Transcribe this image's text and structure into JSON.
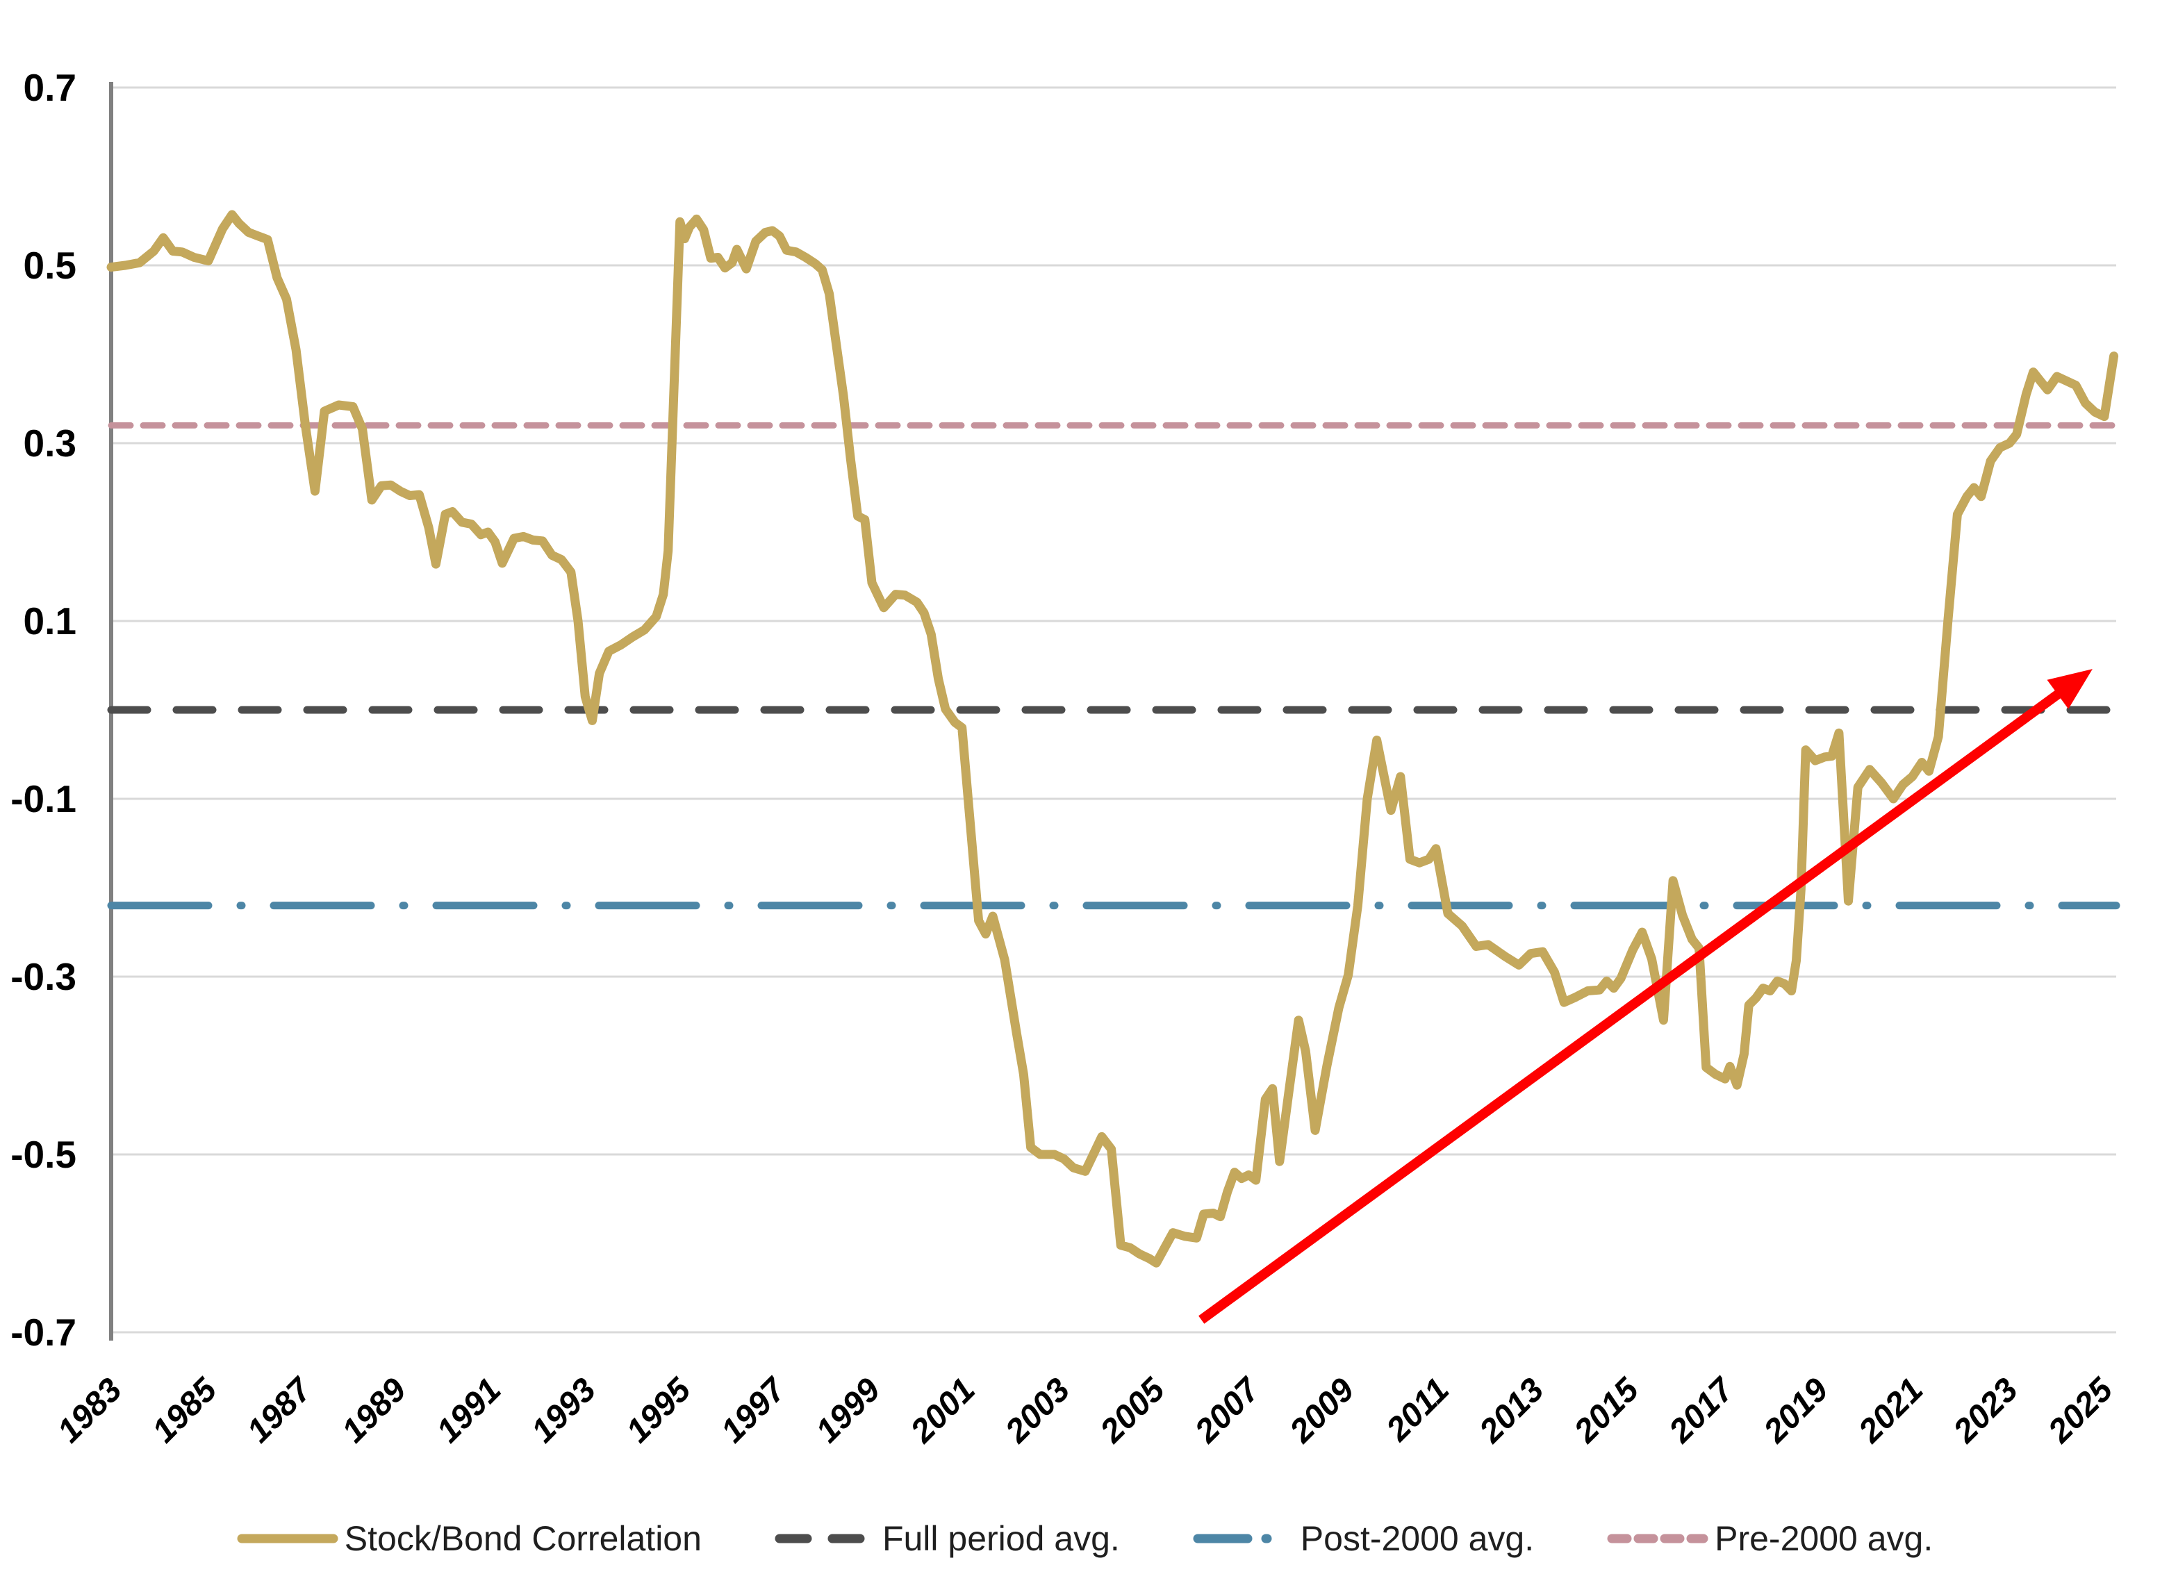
{
  "figure": {
    "background_color": "#FFFFFF",
    "grid_color": "#D9D9D9",
    "axis_color": "#808080",
    "text_color": "#000000",
    "legend_text_color": "#1F1F1F"
  },
  "chart_data": {
    "type": "line",
    "title": "",
    "xlabel": "",
    "ylabel": "",
    "xlim": [
      1983,
      2025.3
    ],
    "ylim": [
      -0.7,
      0.7
    ],
    "grid": "horizontal",
    "legend_position": "bottom",
    "x_ticks": [
      1983,
      1985,
      1987,
      1989,
      1991,
      1993,
      1995,
      1997,
      1999,
      2001,
      2003,
      2005,
      2007,
      2009,
      2011,
      2013,
      2015,
      2017,
      2019,
      2021,
      2023,
      2025
    ],
    "y_ticks": [
      0.7,
      0.5,
      0.3,
      0.1,
      -0.1,
      -0.3,
      -0.5,
      -0.7
    ],
    "y_tick_labels": [
      "0.7",
      "0.5",
      "0.3",
      "0.1",
      "-0.1",
      "-0.3",
      "-0.5",
      "-0.7"
    ],
    "series": [
      {
        "name": "Stock/Bond Correlation",
        "color": "#C4A85C",
        "style": "solid",
        "points": [
          [
            1983.0,
            0.498
          ],
          [
            1983.3,
            0.5
          ],
          [
            1983.6,
            0.503
          ],
          [
            1983.9,
            0.516
          ],
          [
            1984.1,
            0.531
          ],
          [
            1984.3,
            0.516
          ],
          [
            1984.5,
            0.515
          ],
          [
            1984.75,
            0.509
          ],
          [
            1985.05,
            0.505
          ],
          [
            1985.35,
            0.541
          ],
          [
            1985.55,
            0.557
          ],
          [
            1985.7,
            0.547
          ],
          [
            1985.9,
            0.537
          ],
          [
            1986.1,
            0.533
          ],
          [
            1986.3,
            0.529
          ],
          [
            1986.5,
            0.486
          ],
          [
            1986.7,
            0.462
          ],
          [
            1986.9,
            0.405
          ],
          [
            1987.1,
            0.319
          ],
          [
            1987.3,
            0.246
          ],
          [
            1987.5,
            0.336
          ],
          [
            1987.8,
            0.343
          ],
          [
            1988.1,
            0.341
          ],
          [
            1988.3,
            0.316
          ],
          [
            1988.5,
            0.236
          ],
          [
            1988.7,
            0.252
          ],
          [
            1988.9,
            0.253
          ],
          [
            1989.1,
            0.246
          ],
          [
            1989.3,
            0.241
          ],
          [
            1989.5,
            0.242
          ],
          [
            1989.7,
            0.205
          ],
          [
            1989.85,
            0.164
          ],
          [
            1990.05,
            0.22
          ],
          [
            1990.2,
            0.223
          ],
          [
            1990.4,
            0.211
          ],
          [
            1990.6,
            0.209
          ],
          [
            1990.8,
            0.197
          ],
          [
            1990.95,
            0.2
          ],
          [
            1991.1,
            0.189
          ],
          [
            1991.25,
            0.165
          ],
          [
            1991.5,
            0.193
          ],
          [
            1991.7,
            0.195
          ],
          [
            1991.9,
            0.191
          ],
          [
            1992.1,
            0.19
          ],
          [
            1992.3,
            0.174
          ],
          [
            1992.5,
            0.169
          ],
          [
            1992.7,
            0.155
          ],
          [
            1992.85,
            0.1
          ],
          [
            1993.0,
            0.015
          ],
          [
            1993.15,
            -0.012
          ],
          [
            1993.3,
            0.041
          ],
          [
            1993.5,
            0.066
          ],
          [
            1993.75,
            0.073
          ],
          [
            1994.0,
            0.082
          ],
          [
            1994.25,
            0.09
          ],
          [
            1994.5,
            0.105
          ],
          [
            1994.65,
            0.13
          ],
          [
            1994.75,
            0.179
          ],
          [
            1995.0,
            0.549
          ],
          [
            1995.1,
            0.53
          ],
          [
            1995.2,
            0.543
          ],
          [
            1995.35,
            0.552
          ],
          [
            1995.5,
            0.54
          ],
          [
            1995.65,
            0.508
          ],
          [
            1995.8,
            0.509
          ],
          [
            1995.95,
            0.497
          ],
          [
            1996.1,
            0.503
          ],
          [
            1996.2,
            0.518
          ],
          [
            1996.4,
            0.496
          ],
          [
            1996.6,
            0.527
          ],
          [
            1996.8,
            0.537
          ],
          [
            1996.95,
            0.539
          ],
          [
            1997.1,
            0.533
          ],
          [
            1997.25,
            0.517
          ],
          [
            1997.45,
            0.515
          ],
          [
            1997.65,
            0.509
          ],
          [
            1997.85,
            0.502
          ],
          [
            1998.0,
            0.495
          ],
          [
            1998.15,
            0.468
          ],
          [
            1998.3,
            0.41
          ],
          [
            1998.45,
            0.353
          ],
          [
            1998.6,
            0.282
          ],
          [
            1998.75,
            0.218
          ],
          [
            1998.9,
            0.214
          ],
          [
            1999.05,
            0.143
          ],
          [
            1999.3,
            0.115
          ],
          [
            1999.55,
            0.13
          ],
          [
            1999.75,
            0.129
          ],
          [
            2000.0,
            0.121
          ],
          [
            2000.15,
            0.109
          ],
          [
            2000.3,
            0.085
          ],
          [
            2000.45,
            0.035
          ],
          [
            2000.6,
            0.001
          ],
          [
            2000.8,
            -0.014
          ],
          [
            2000.95,
            -0.02
          ],
          [
            2001.1,
            -0.113
          ],
          [
            2001.3,
            -0.237
          ],
          [
            2001.45,
            -0.252
          ],
          [
            2001.6,
            -0.232
          ],
          [
            2001.85,
            -0.281
          ],
          [
            2002.1,
            -0.363
          ],
          [
            2002.25,
            -0.41
          ],
          [
            2002.4,
            -0.492
          ],
          [
            2002.6,
            -0.5
          ],
          [
            2002.9,
            -0.5
          ],
          [
            2003.1,
            -0.505
          ],
          [
            2003.3,
            -0.515
          ],
          [
            2003.55,
            -0.519
          ],
          [
            2003.9,
            -0.48
          ],
          [
            2004.1,
            -0.494
          ],
          [
            2004.3,
            -0.602
          ],
          [
            2004.5,
            -0.605
          ],
          [
            2004.7,
            -0.612
          ],
          [
            2004.9,
            -0.617
          ],
          [
            2005.05,
            -0.622
          ],
          [
            2005.4,
            -0.588
          ],
          [
            2005.65,
            -0.592
          ],
          [
            2005.9,
            -0.594
          ],
          [
            2006.05,
            -0.567
          ],
          [
            2006.25,
            -0.566
          ],
          [
            2006.4,
            -0.57
          ],
          [
            2006.55,
            -0.542
          ],
          [
            2006.7,
            -0.52
          ],
          [
            2006.85,
            -0.527
          ],
          [
            2007.0,
            -0.523
          ],
          [
            2007.15,
            -0.529
          ],
          [
            2007.35,
            -0.438
          ],
          [
            2007.5,
            -0.426
          ],
          [
            2007.65,
            -0.508
          ],
          [
            2007.85,
            -0.428
          ],
          [
            2008.05,
            -0.349
          ],
          [
            2008.2,
            -0.384
          ],
          [
            2008.4,
            -0.473
          ],
          [
            2008.65,
            -0.4
          ],
          [
            2008.9,
            -0.335
          ],
          [
            2009.1,
            -0.298
          ],
          [
            2009.3,
            -0.22
          ],
          [
            2009.5,
            -0.1
          ],
          [
            2009.7,
            -0.034
          ],
          [
            2010.0,
            -0.113
          ],
          [
            2010.2,
            -0.075
          ],
          [
            2010.4,
            -0.168
          ],
          [
            2010.6,
            -0.172
          ],
          [
            2010.8,
            -0.168
          ],
          [
            2010.95,
            -0.156
          ],
          [
            2011.2,
            -0.229
          ],
          [
            2011.5,
            -0.243
          ],
          [
            2011.8,
            -0.266
          ],
          [
            2012.05,
            -0.264
          ],
          [
            2012.4,
            -0.277
          ],
          [
            2012.7,
            -0.287
          ],
          [
            2012.95,
            -0.274
          ],
          [
            2013.2,
            -0.272
          ],
          [
            2013.45,
            -0.295
          ],
          [
            2013.65,
            -0.329
          ],
          [
            2013.9,
            -0.323
          ],
          [
            2014.15,
            -0.316
          ],
          [
            2014.4,
            -0.315
          ],
          [
            2014.55,
            -0.305
          ],
          [
            2014.7,
            -0.313
          ],
          [
            2014.85,
            -0.302
          ],
          [
            2015.1,
            -0.27
          ],
          [
            2015.3,
            -0.25
          ],
          [
            2015.5,
            -0.28
          ],
          [
            2015.75,
            -0.349
          ],
          [
            2015.95,
            -0.192
          ],
          [
            2016.15,
            -0.231
          ],
          [
            2016.35,
            -0.258
          ],
          [
            2016.5,
            -0.268
          ],
          [
            2016.65,
            -0.402
          ],
          [
            2016.85,
            -0.41
          ],
          [
            2017.05,
            -0.415
          ],
          [
            2017.15,
            -0.401
          ],
          [
            2017.3,
            -0.422
          ],
          [
            2017.45,
            -0.387
          ],
          [
            2017.55,
            -0.332
          ],
          [
            2017.7,
            -0.324
          ],
          [
            2017.85,
            -0.313
          ],
          [
            2018.0,
            -0.316
          ],
          [
            2018.15,
            -0.305
          ],
          [
            2018.3,
            -0.308
          ],
          [
            2018.45,
            -0.316
          ],
          [
            2018.55,
            -0.282
          ],
          [
            2018.65,
            -0.202
          ],
          [
            2018.75,
            -0.045
          ],
          [
            2018.95,
            -0.057
          ],
          [
            2019.15,
            -0.053
          ],
          [
            2019.3,
            -0.052
          ],
          [
            2019.45,
            -0.026
          ],
          [
            2019.65,
            -0.215
          ],
          [
            2019.85,
            -0.087
          ],
          [
            2020.1,
            -0.067
          ],
          [
            2020.35,
            -0.082
          ],
          [
            2020.6,
            -0.1
          ],
          [
            2020.8,
            -0.084
          ],
          [
            2021.0,
            -0.075
          ],
          [
            2021.2,
            -0.059
          ],
          [
            2021.35,
            -0.069
          ],
          [
            2021.55,
            -0.03
          ],
          [
            2021.75,
            0.1
          ],
          [
            2021.95,
            0.22
          ],
          [
            2022.15,
            0.24
          ],
          [
            2022.3,
            0.25
          ],
          [
            2022.45,
            0.24
          ],
          [
            2022.65,
            0.28
          ],
          [
            2022.85,
            0.295
          ],
          [
            2023.05,
            0.3
          ],
          [
            2023.2,
            0.31
          ],
          [
            2023.4,
            0.355
          ],
          [
            2023.55,
            0.38
          ],
          [
            2023.7,
            0.37
          ],
          [
            2023.85,
            0.36
          ],
          [
            2024.05,
            0.375
          ],
          [
            2024.25,
            0.37
          ],
          [
            2024.45,
            0.365
          ],
          [
            2024.65,
            0.345
          ],
          [
            2024.85,
            0.335
          ],
          [
            2025.05,
            0.33
          ],
          [
            2025.25,
            0.398
          ]
        ]
      },
      {
        "name": "Full period avg.",
        "color": "#4D4D4D",
        "style": "dashed",
        "value": 0.0
      },
      {
        "name": "Post-2000 avg.",
        "color": "#4D86A6",
        "style": "dash-dot",
        "value": -0.22
      },
      {
        "name": "Pre-2000 avg.",
        "color": "#C5929B",
        "style": "short-dash",
        "value": 0.32
      }
    ],
    "annotations": [
      {
        "type": "arrow",
        "color": "#FE0000",
        "from": [
          2006.0,
          -0.686
        ],
        "to": [
          2024.8,
          0.046
        ]
      }
    ]
  },
  "legend": {
    "items": [
      {
        "label": "Stock/Bond Correlation"
      },
      {
        "label": "Full period avg."
      },
      {
        "label": "Post-2000 avg."
      },
      {
        "label": "Pre-2000 avg."
      }
    ]
  }
}
